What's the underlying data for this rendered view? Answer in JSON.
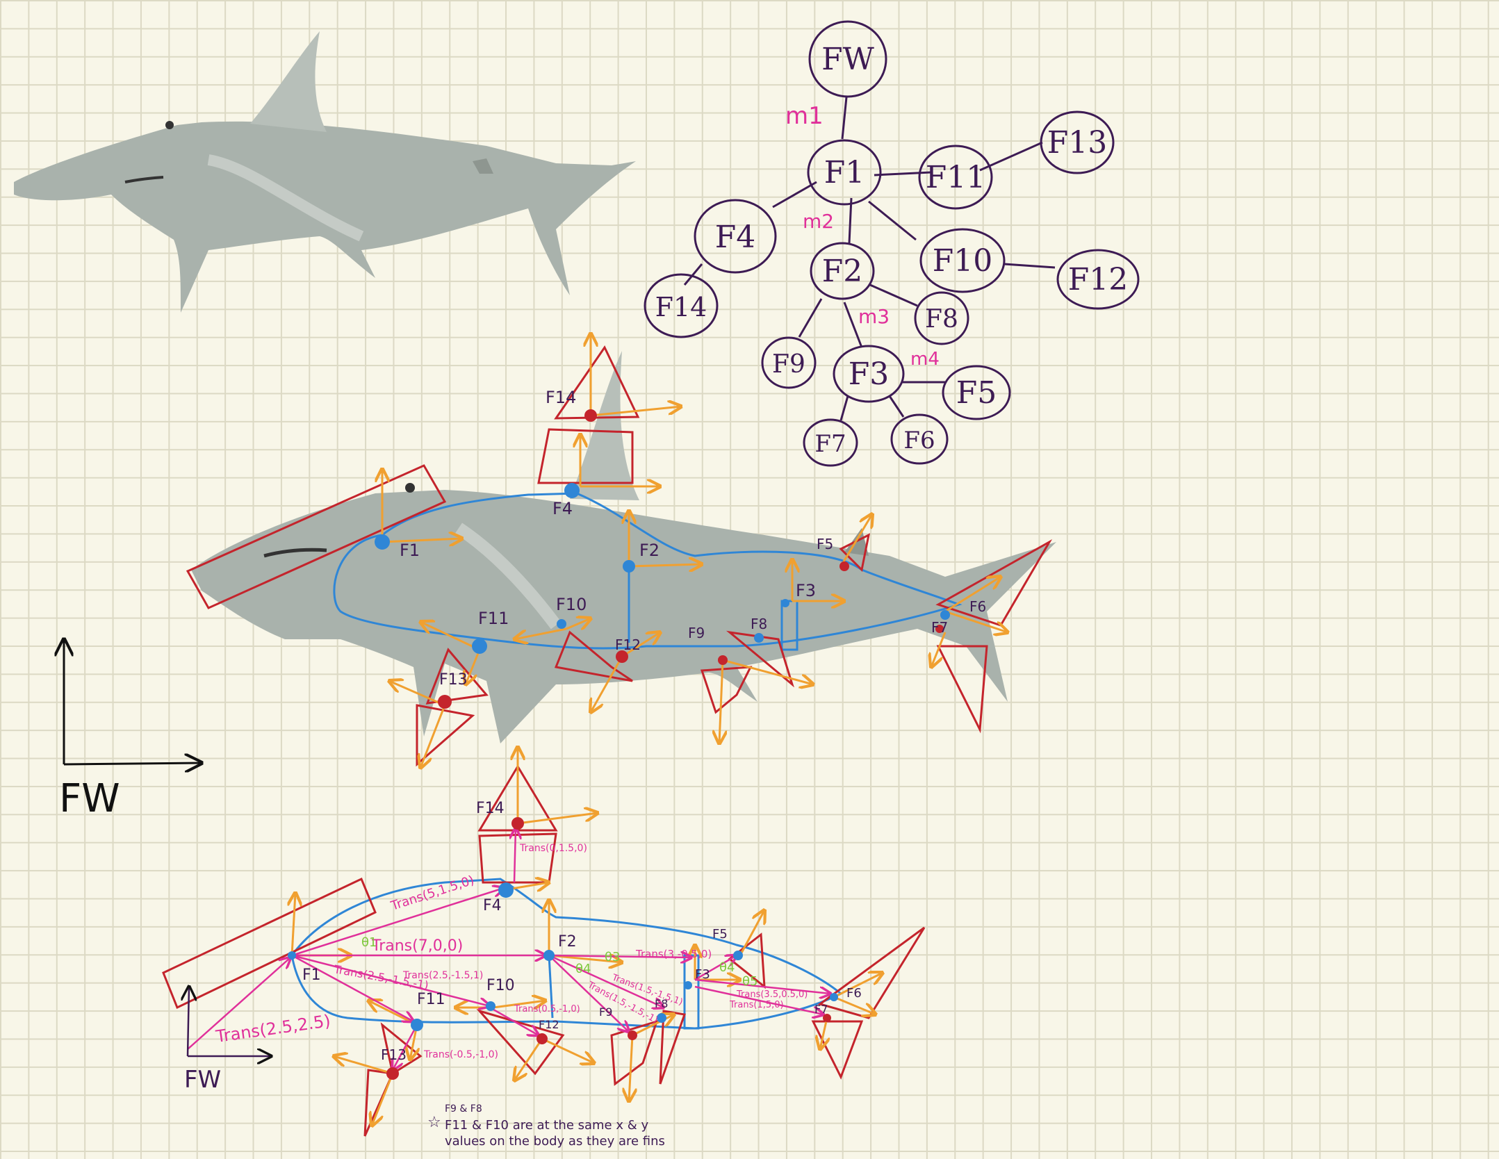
{
  "colors": {
    "ink": "#3d1b54",
    "magenta": "#e0309a",
    "blue": "#2f86d6",
    "red": "#c4242c",
    "orange": "#f0a030",
    "green": "#7ec83c",
    "shark": "#a9b2ac"
  },
  "tree": {
    "nodes": [
      "FW",
      "F1",
      "F4",
      "F14",
      "F2",
      "F9",
      "F3",
      "F7",
      "F6",
      "F5",
      "F8",
      "F10",
      "F12",
      "F11",
      "F13"
    ],
    "edge_labels": [
      "m1",
      "m2",
      "m3",
      "m4"
    ]
  },
  "axes_left": {
    "label": "FW"
  },
  "middle_rig": {
    "labels": [
      "F14",
      "F4",
      "F1",
      "F2",
      "F5",
      "F3",
      "F6",
      "F7",
      "F11",
      "F10",
      "F12",
      "F9",
      "F8",
      "F13"
    ]
  },
  "bottom_rig": {
    "labels": [
      "F14",
      "F4",
      "F1",
      "F2",
      "F5",
      "F3",
      "F6",
      "F7",
      "F11",
      "F10",
      "F12",
      "F9",
      "F8",
      "F13"
    ],
    "origin_label": "FW",
    "transforms": [
      "Trans(2.5,2.5)",
      "Trans(5,1.5,0)",
      "Trans(0,1.5,0)",
      "Trans(7,0,0)",
      "Trans(2.5,-1.5,-1)",
      "Trans(2.5,-1.5,1)",
      "Trans(-0.5,-1,0)",
      "Trans(0.5,-1,0)",
      "Trans(3,-0.5,0)",
      "Trans(1.5,-1.5,1)",
      "Trans(1.5,-1.5,-1)",
      "Trans(3.5,0.5,0)",
      "Trans(1,5,0)"
    ],
    "angles": [
      "θ1",
      "θ3",
      "θ4",
      "θ4",
      "θ5"
    ],
    "note_lines": [
      "F9 & F8",
      "F11 & F10 are at the same x & y",
      "values on the body as they are fins"
    ]
  }
}
